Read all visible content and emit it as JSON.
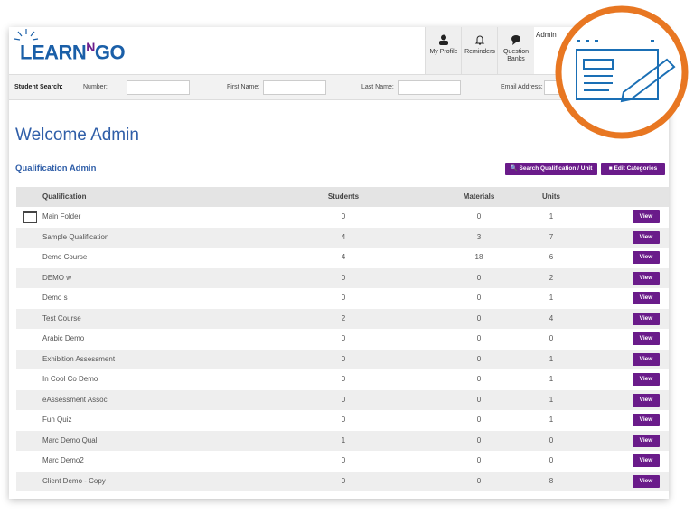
{
  "header": {
    "logo": "LEARN",
    "logo_sup": "N",
    "logo_end": "GO",
    "user": "Admin",
    "nav": [
      "My Profile",
      "Reminders",
      "Question Banks"
    ]
  },
  "search": {
    "title": "Student Search:",
    "fields": [
      "Number:",
      "First Name:",
      "Last Name:",
      "Email Address:"
    ]
  },
  "welcome": "Welcome Admin",
  "section_title": "Qualification Admin",
  "buttons": [
    "Search Qualification / Unit",
    "Edit Categories"
  ],
  "table": {
    "columns": [
      "Qualification",
      "Students",
      "Materials",
      "Units"
    ],
    "action_label": "View",
    "rows": [
      [
        "Main Folder",
        0,
        0,
        1
      ],
      [
        "Sample Qualification",
        4,
        3,
        7
      ],
      [
        "Demo Course",
        4,
        18,
        6
      ],
      [
        "DEMO w",
        0,
        0,
        2
      ],
      [
        "Demo s",
        0,
        0,
        1
      ],
      [
        "Test Course",
        2,
        0,
        4
      ],
      [
        "Arabic Demo",
        0,
        0,
        0
      ],
      [
        "Exhibition Assessment",
        0,
        0,
        1
      ],
      [
        "In Cool Co Demo",
        0,
        0,
        1
      ],
      [
        "eAssessment Assoc",
        0,
        0,
        1
      ],
      [
        "Fun Quiz",
        0,
        0,
        1
      ],
      [
        "Marc Demo Qual",
        1,
        0,
        0
      ],
      [
        "Marc Demo2",
        0,
        0,
        0
      ],
      [
        "Client Demo - Copy",
        0,
        0,
        8
      ]
    ]
  }
}
